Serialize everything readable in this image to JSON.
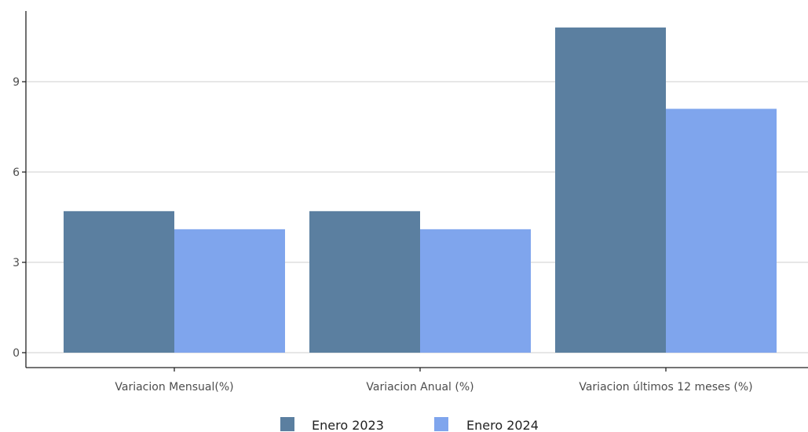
{
  "chart_data": {
    "type": "bar",
    "categories": [
      "Variacion Mensual(%)",
      "Variacion Anual (%)",
      "Variacion últimos 12 meses (%)"
    ],
    "series": [
      {
        "name": "Enero 2023",
        "values": [
          4.7,
          4.7,
          10.8
        ],
        "color": "#5b7fa0"
      },
      {
        "name": "Enero 2024",
        "values": [
          4.1,
          4.1,
          8.1
        ],
        "color": "#7fa5ed"
      }
    ],
    "title": "",
    "xlabel": "",
    "ylabel": "",
    "ylim": [
      0,
      11.2
    ],
    "yticks": [
      0,
      3,
      6,
      9
    ],
    "grid": "horizontal",
    "legend_position": "bottom"
  }
}
